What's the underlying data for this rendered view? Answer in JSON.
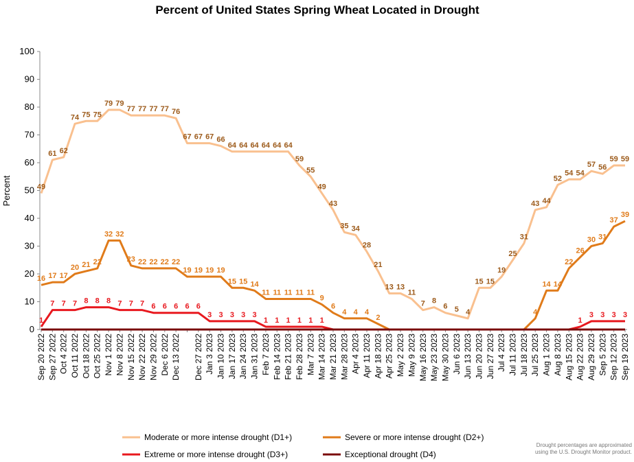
{
  "chart_data": {
    "type": "line",
    "title": "Percent of United States Spring Wheat Located in Drought",
    "y_label": "Percent",
    "categories": [
      "Sep 20 2022",
      "Sep 27 2022",
      "Oct 4 2022",
      "Oct 11 2022",
      "Oct 18 2022",
      "Oct 25 2022",
      "Nov 1 2022",
      "Nov 8 2022",
      "Nov 15 2022",
      "Nov 22 2022",
      "Nov 29 2022",
      "Dec 6 2022",
      "Dec 13 2022",
      null,
      "Dec 27 2022",
      "Jan 3 2023",
      "Jan 10 2023",
      "Jan 17 2023",
      "Jan 24 2023",
      "Jan 31 2023",
      "Feb 7 2023",
      "Feb 14 2023",
      "Feb 21 2023",
      "Feb 28 2023",
      "Mar 7 2023",
      "Mar 14 2023",
      "Mar 21 2023",
      "Mar 28 2023",
      "Apr 4 2023",
      "Apr 11 2023",
      "Apr 18 2023",
      "Apr 25 2023",
      "May 2 2023",
      "May 9 2023",
      "May 16 2023",
      "May 23 2023",
      "May 30 2023",
      "Jun 6 2023",
      "Jun 13 2023",
      "Jun 20 2023",
      "Jun 27 2023",
      "Jul 4 2023",
      "Jul 11 2023",
      "Jul 18 2023",
      "Jul 25 2023",
      "Aug 1 2023",
      "Aug 8 2023",
      "Aug 15 2023",
      "Aug 22 2023",
      "Aug 29 2023",
      "Sep 5 2023",
      "Sep 12 2023",
      "Sep 19 2023"
    ],
    "series": [
      {
        "name": "Moderate or more intense drought (D1+)",
        "color": "#f9c08f",
        "label_color": "#9c5a1a",
        "show_labels": true,
        "values": [
          49,
          61,
          62,
          74,
          75,
          75,
          79,
          79,
          77,
          77,
          77,
          77,
          76,
          67,
          67,
          67,
          66,
          64,
          64,
          64,
          64,
          64,
          64,
          59,
          55,
          49,
          43,
          35,
          34,
          28,
          21,
          13,
          13,
          11,
          7,
          8,
          6,
          5,
          4,
          15,
          15,
          19,
          25,
          31,
          43,
          44,
          52,
          54,
          54,
          57,
          56,
          59,
          59
        ]
      },
      {
        "name": "Severe or more intense drought (D2+)",
        "color": "#e07b1a",
        "label_color": "#e07b1a",
        "show_labels": true,
        "values": [
          16,
          17,
          17,
          20,
          21,
          22,
          32,
          32,
          23,
          22,
          22,
          22,
          22,
          19,
          19,
          19,
          19,
          15,
          15,
          14,
          11,
          11,
          11,
          11,
          11,
          9,
          6,
          4,
          4,
          4,
          2,
          0,
          0,
          0,
          0,
          0,
          0,
          0,
          0,
          0,
          0,
          0,
          0,
          0,
          4,
          14,
          14,
          22,
          26,
          30,
          31,
          37,
          39
        ]
      },
      {
        "name": "Extreme or more intense drought (D3+)",
        "color": "#e8181e",
        "label_color": "#e8181e",
        "show_labels": true,
        "values": [
          1,
          7,
          7,
          7,
          8,
          8,
          8,
          7,
          7,
          7,
          6,
          6,
          6,
          6,
          6,
          3,
          3,
          3,
          3,
          3,
          1,
          1,
          1,
          1,
          1,
          1,
          0,
          0,
          0,
          0,
          0,
          0,
          0,
          0,
          0,
          0,
          0,
          0,
          0,
          0,
          0,
          0,
          0,
          0,
          0,
          0,
          0,
          0,
          1,
          3,
          3,
          3,
          3
        ]
      },
      {
        "name": "Exceptional drought (D4)",
        "color": "#7a0b0b",
        "label_color": "#7a0b0b",
        "show_labels": false,
        "values": [
          0,
          0,
          0,
          0,
          0,
          0,
          0,
          0,
          0,
          0,
          0,
          0,
          0,
          0,
          0,
          0,
          0,
          0,
          0,
          0,
          0,
          0,
          0,
          0,
          0,
          0,
          0,
          0,
          0,
          0,
          0,
          0,
          0,
          0,
          0,
          0,
          0,
          0,
          0,
          0,
          0,
          0,
          0,
          0,
          0,
          0,
          0,
          0,
          0,
          0,
          0,
          0,
          0
        ]
      }
    ],
    "ylim": [
      0,
      100
    ],
    "yticks": [
      0,
      10,
      20,
      30,
      40,
      50,
      60,
      70,
      80,
      90,
      100
    ],
    "grid": false,
    "legend": "bottom",
    "note": [
      "Drought percentages are approximated",
      "using the U.S. Drought Monitor product."
    ]
  }
}
